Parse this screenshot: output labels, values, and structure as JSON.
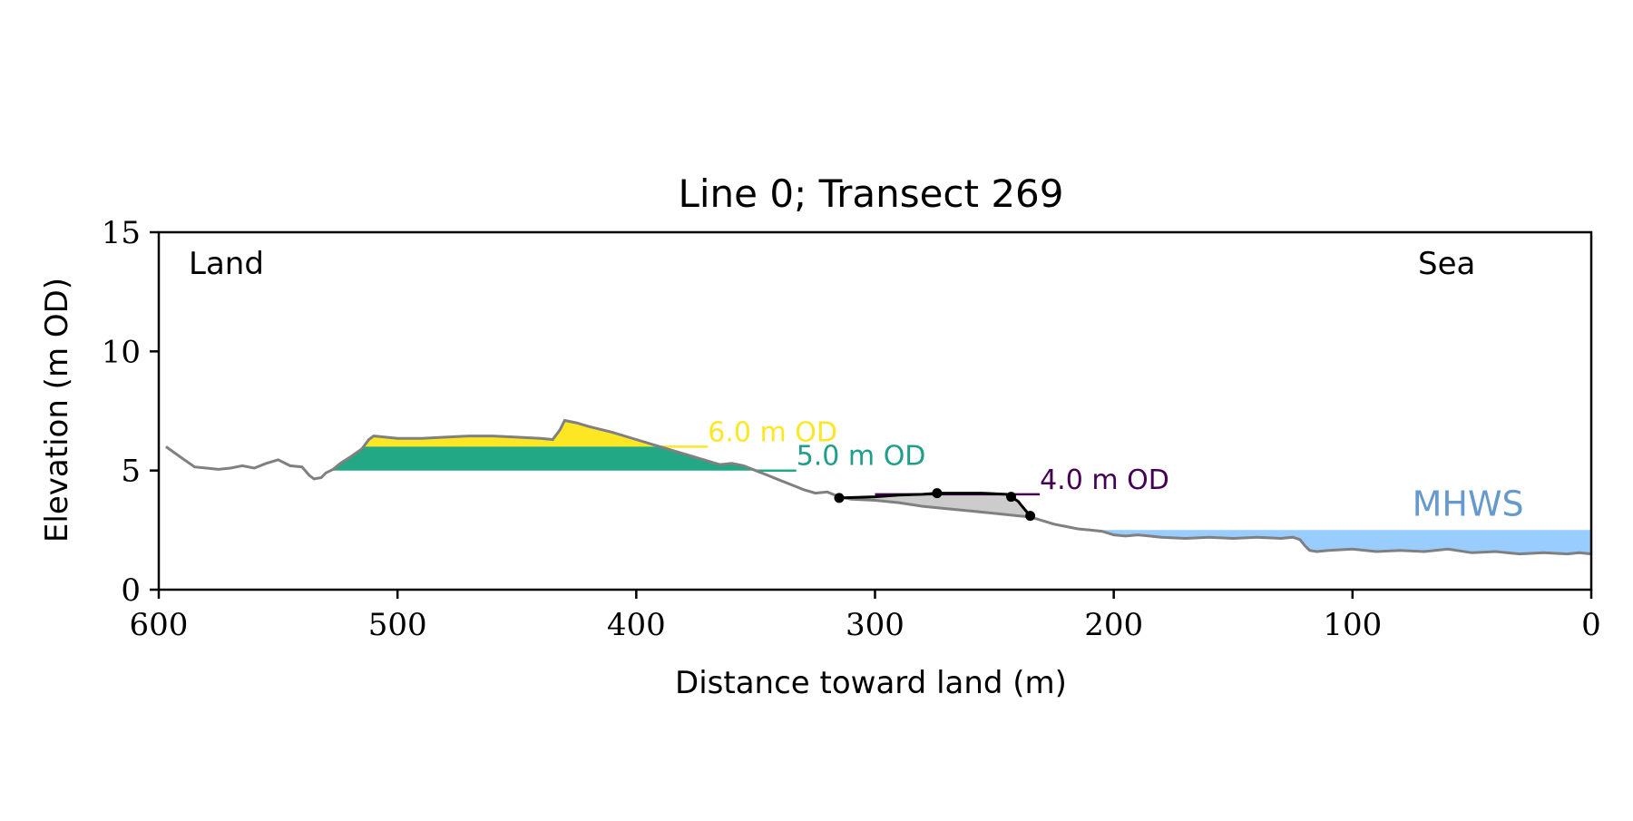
{
  "chart_data": {
    "type": "area",
    "title": "Line 0; Transect 269",
    "xlabel": "Distance toward land (m)",
    "ylabel": "Elevation (m OD)",
    "xlim": [
      600,
      0
    ],
    "ylim": [
      0,
      15
    ],
    "x_reversed": true,
    "grid": false,
    "xticks": [
      600,
      500,
      400,
      300,
      200,
      100,
      0
    ],
    "yticks": [
      0,
      5,
      10,
      15
    ],
    "corner_labels": {
      "left": "Land",
      "right": "Sea"
    },
    "colors": {
      "profile": "#808080",
      "level_6": "#fde725",
      "level_5": "#22a884",
      "level_5_label": "#1f9e89",
      "level_4": "#440154",
      "mhws": "#9ecae1",
      "mhws_fill": "#99ccff",
      "mhws_label": "#6699cc",
      "dune": "#000000",
      "dune_shadow": "#cccccc"
    },
    "profile": {
      "x": [
        597,
        590,
        585,
        580,
        575,
        570,
        565,
        560,
        555,
        550,
        545,
        540,
        537,
        535,
        532,
        530,
        527,
        524,
        520,
        515,
        512,
        510,
        505,
        500,
        490,
        480,
        470,
        460,
        450,
        440,
        435,
        432,
        430,
        425,
        420,
        410,
        400,
        390,
        380,
        370,
        365,
        360,
        355,
        350,
        345,
        340,
        335,
        330,
        325,
        320,
        315,
        310,
        300,
        290,
        280,
        270,
        260,
        250,
        240,
        235,
        230,
        225,
        220,
        215,
        210,
        205,
        200,
        195,
        190,
        180,
        170,
        160,
        150,
        140,
        130,
        125,
        122,
        120,
        118,
        115,
        110,
        100,
        90,
        80,
        70,
        60,
        50,
        40,
        30,
        20,
        10,
        5,
        0
      ],
      "y": [
        6.0,
        5.5,
        5.15,
        5.1,
        5.05,
        5.1,
        5.2,
        5.1,
        5.3,
        5.45,
        5.2,
        5.15,
        4.8,
        4.65,
        4.7,
        4.9,
        5.05,
        5.3,
        5.55,
        5.9,
        6.3,
        6.45,
        6.4,
        6.35,
        6.35,
        6.4,
        6.45,
        6.45,
        6.4,
        6.35,
        6.3,
        6.7,
        7.1,
        7.0,
        6.85,
        6.6,
        6.3,
        6.0,
        5.7,
        5.4,
        5.25,
        5.3,
        5.2,
        5.0,
        4.8,
        4.6,
        4.4,
        4.2,
        4.05,
        4.1,
        3.9,
        3.8,
        3.75,
        3.65,
        3.5,
        3.4,
        3.3,
        3.2,
        3.1,
        3.05,
        2.9,
        2.75,
        2.65,
        2.55,
        2.5,
        2.45,
        2.3,
        2.25,
        2.3,
        2.2,
        2.15,
        2.2,
        2.15,
        2.2,
        2.15,
        2.2,
        2.1,
        1.85,
        1.65,
        1.6,
        1.65,
        1.7,
        1.6,
        1.65,
        1.6,
        1.7,
        1.55,
        1.6,
        1.5,
        1.55,
        1.5,
        1.55,
        1.5
      ]
    },
    "levels": [
      {
        "label": "6.0 m OD",
        "value": 6.0,
        "x_end": 370
      },
      {
        "label": "5.0 m OD",
        "value": 5.0,
        "x_end": 333
      },
      {
        "label": "4.0 m OD",
        "value": 4.0,
        "x_end": 231
      }
    ],
    "mhws": {
      "label": "MHWS",
      "value": 2.5,
      "x_start": 205
    },
    "dune_line": {
      "x": [
        315,
        300,
        290,
        280,
        274,
        265,
        255,
        245,
        243,
        240,
        238,
        235
      ],
      "y": [
        3.85,
        3.9,
        3.97,
        4.0,
        4.05,
        4.05,
        4.05,
        4.0,
        3.9,
        3.7,
        3.45,
        3.1
      ]
    },
    "dune_points": {
      "x": [
        315,
        274,
        243,
        235
      ],
      "y": [
        3.85,
        4.05,
        3.9,
        3.1
      ]
    }
  }
}
